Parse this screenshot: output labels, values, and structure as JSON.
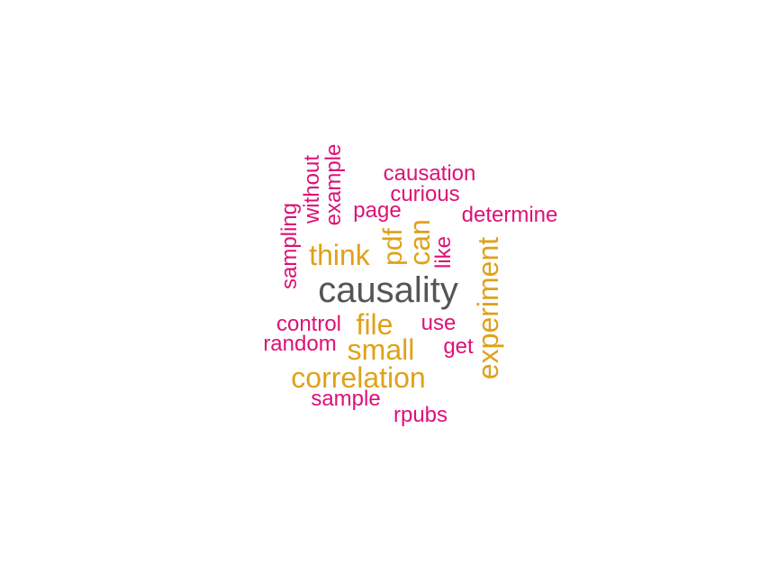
{
  "colors": {
    "dominant": "#555555",
    "high_frequency": "#e0a11a",
    "low_frequency": "#dd1177"
  },
  "word_cloud": {
    "words": [
      {
        "text": "causality",
        "tier": "dominant"
      },
      {
        "text": "correlation",
        "tier": "high_frequency"
      },
      {
        "text": "experiment",
        "tier": "high_frequency"
      },
      {
        "text": "small",
        "tier": "high_frequency"
      },
      {
        "text": "think",
        "tier": "high_frequency"
      },
      {
        "text": "can",
        "tier": "high_frequency"
      },
      {
        "text": "file",
        "tier": "high_frequency"
      },
      {
        "text": "pdf",
        "tier": "high_frequency"
      },
      {
        "text": "causation",
        "tier": "low_frequency"
      },
      {
        "text": "curious",
        "tier": "low_frequency"
      },
      {
        "text": "determine",
        "tier": "low_frequency"
      },
      {
        "text": "page",
        "tier": "low_frequency"
      },
      {
        "text": "example",
        "tier": "low_frequency"
      },
      {
        "text": "without",
        "tier": "low_frequency"
      },
      {
        "text": "sampling",
        "tier": "low_frequency"
      },
      {
        "text": "like",
        "tier": "low_frequency"
      },
      {
        "text": "control",
        "tier": "low_frequency"
      },
      {
        "text": "random",
        "tier": "low_frequency"
      },
      {
        "text": "use",
        "tier": "low_frequency"
      },
      {
        "text": "get",
        "tier": "low_frequency"
      },
      {
        "text": "sample",
        "tier": "low_frequency"
      },
      {
        "text": "rpubs",
        "tier": "low_frequency"
      }
    ]
  }
}
